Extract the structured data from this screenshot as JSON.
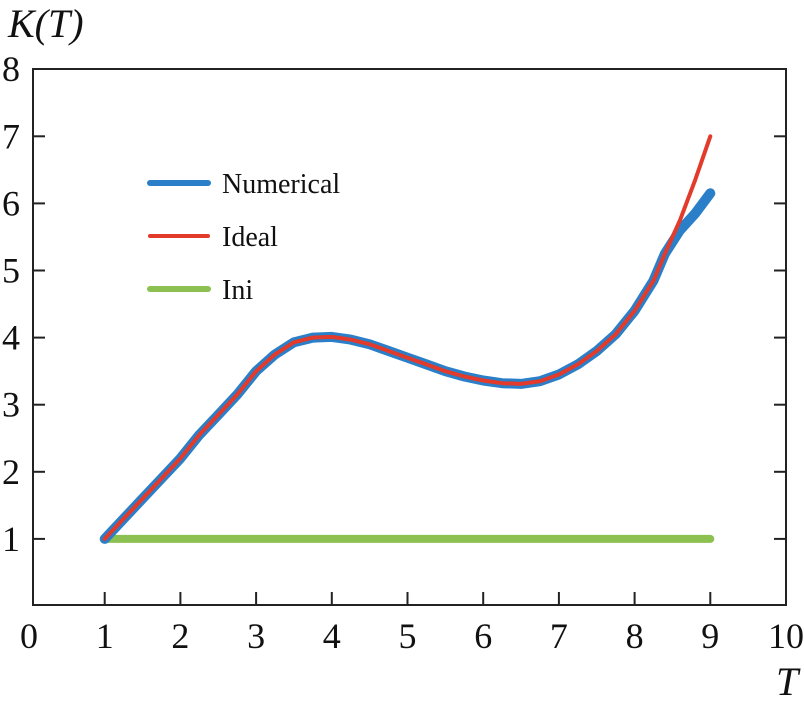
{
  "chart_data": {
    "type": "line",
    "title": "",
    "xlabel": "T",
    "ylabel": "K(T)",
    "xlim": [
      0,
      10
    ],
    "ylim": [
      0,
      8
    ],
    "xticks": [
      0,
      1,
      2,
      3,
      4,
      5,
      6,
      7,
      8,
      9,
      10
    ],
    "yticks": [
      1,
      2,
      3,
      4,
      5,
      6,
      7,
      8
    ],
    "grid": false,
    "legend_position": "upper-left",
    "series": [
      {
        "name": "Numerical",
        "color": "#2a7fc8",
        "x": [
          1.0,
          1.25,
          1.5,
          1.75,
          2.0,
          2.25,
          2.5,
          2.75,
          3.0,
          3.25,
          3.5,
          3.75,
          4.0,
          4.25,
          4.5,
          4.75,
          5.0,
          5.25,
          5.5,
          5.75,
          6.0,
          6.25,
          6.5,
          6.75,
          7.0,
          7.25,
          7.5,
          7.75,
          8.0,
          8.25,
          8.4,
          8.6,
          8.8,
          9.0
        ],
        "y": [
          1.0,
          1.3,
          1.6,
          1.9,
          2.2,
          2.55,
          2.85,
          3.15,
          3.5,
          3.75,
          3.93,
          4.0,
          4.01,
          3.97,
          3.9,
          3.8,
          3.7,
          3.6,
          3.5,
          3.42,
          3.36,
          3.32,
          3.31,
          3.35,
          3.45,
          3.6,
          3.8,
          4.05,
          4.4,
          4.85,
          5.25,
          5.6,
          5.85,
          6.15
        ]
      },
      {
        "name": "Ideal",
        "color": "#e23a2b",
        "x": [
          1.0,
          1.25,
          1.5,
          1.75,
          2.0,
          2.25,
          2.5,
          2.75,
          3.0,
          3.25,
          3.5,
          3.75,
          4.0,
          4.25,
          4.5,
          4.75,
          5.0,
          5.25,
          5.5,
          5.75,
          6.0,
          6.25,
          6.5,
          6.75,
          7.0,
          7.25,
          7.5,
          7.75,
          8.0,
          8.25,
          8.4,
          8.6,
          8.8,
          9.0
        ],
        "y": [
          1.0,
          1.3,
          1.6,
          1.9,
          2.2,
          2.55,
          2.85,
          3.15,
          3.5,
          3.75,
          3.93,
          4.0,
          4.01,
          3.97,
          3.9,
          3.8,
          3.7,
          3.6,
          3.5,
          3.42,
          3.36,
          3.32,
          3.31,
          3.35,
          3.45,
          3.6,
          3.8,
          4.05,
          4.4,
          4.85,
          5.25,
          5.75,
          6.35,
          7.0
        ]
      },
      {
        "name": "Ini",
        "color": "#8cc152",
        "x": [
          1.0,
          9.0
        ],
        "y": [
          1.0,
          1.0
        ]
      }
    ]
  }
}
